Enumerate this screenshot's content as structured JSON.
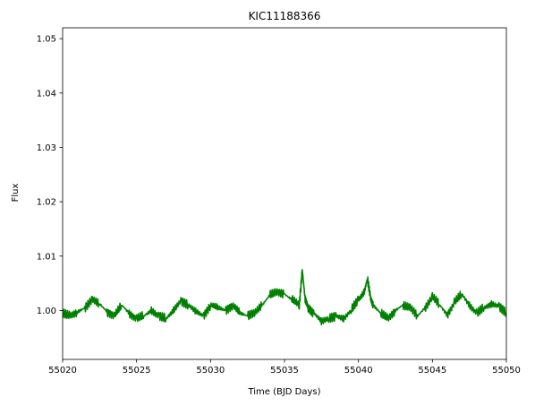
{
  "chart_data": {
    "type": "line",
    "title": "KIC11188366",
    "xlabel": "Time (BJD Days)",
    "ylabel": "Flux",
    "xlim": [
      55020,
      55050
    ],
    "ylim": [
      0.991,
      1.052
    ],
    "xticks": [
      55020,
      55025,
      55030,
      55035,
      55040,
      55045,
      55050
    ],
    "yticks": [
      1.0,
      1.01,
      1.02,
      1.03,
      1.04,
      1.05
    ],
    "ytick_labels": [
      "1.00",
      "1.01",
      "1.02",
      "1.03",
      "1.04",
      "1.05"
    ],
    "grid": false,
    "series": [
      {
        "color": "#008000",
        "x": [
          55020.0,
          55020.5,
          55021.0,
          55021.5,
          55022.0,
          55022.5,
          55023.0,
          55023.5,
          55024.0,
          55024.5,
          55025.0,
          55025.5,
          55026.0,
          55026.5,
          55027.0,
          55027.5,
          55028.0,
          55028.5,
          55029.0,
          55029.5,
          55030.0,
          55030.5,
          55031.0,
          55031.5,
          55032.0,
          55032.5,
          55033.0,
          55033.5,
          55034.0,
          55034.5,
          55035.0,
          55035.5,
          55036.0,
          55036.2,
          55036.4,
          55036.6,
          55037.0,
          55037.5,
          55038.0,
          55038.5,
          55039.0,
          55039.5,
          55040.0,
          55040.4,
          55040.6,
          55040.8,
          55041.0,
          55041.5,
          55042.0,
          55042.5,
          55043.0,
          55043.5,
          55044.0,
          55044.5,
          55045.0,
          55045.5,
          55046.0,
          55046.5,
          55047.0,
          55047.5,
          55048.0,
          55048.5,
          55049.0,
          55049.5,
          55050.0
        ],
        "y": [
          0.9995,
          0.999,
          0.9997,
          1.0005,
          1.002,
          1.0012,
          0.9998,
          0.999,
          1.001,
          0.9995,
          0.9985,
          0.999,
          1.0,
          0.999,
          0.9985,
          1.0,
          1.0018,
          1.001,
          0.9998,
          0.999,
          1.001,
          1.0005,
          1.0,
          1.001,
          0.9995,
          0.999,
          0.9997,
          1.001,
          1.0028,
          1.0035,
          1.003,
          1.002,
          1.001,
          1.0075,
          1.002,
          1.0005,
          0.9995,
          0.998,
          0.9985,
          0.999,
          0.9985,
          1.0,
          1.002,
          1.0035,
          1.0058,
          1.0025,
          1.001,
          0.9995,
          0.9985,
          1.0,
          1.001,
          1.0005,
          0.999,
          1.0005,
          1.0025,
          1.001,
          0.9992,
          1.0015,
          1.003,
          1.001,
          0.9995,
          1.0005,
          1.0012,
          1.0008,
          0.9995
        ]
      }
    ]
  }
}
